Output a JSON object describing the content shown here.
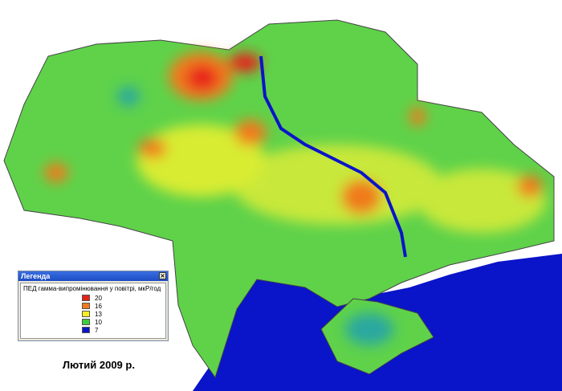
{
  "map": {
    "caption": "Лютий 2009 р.",
    "legend": {
      "title": "Легенда",
      "heading": "ПЕД гамма-випромінювання у повітрі, мкР/год",
      "items": [
        {
          "value": 20,
          "color": "#e8201a"
        },
        {
          "value": 16,
          "color": "#f07a1e"
        },
        {
          "value": 13,
          "color": "#f4f01e"
        },
        {
          "value": 10,
          "color": "#3ccc3c"
        },
        {
          "value": 7,
          "color": "#0a14c8"
        }
      ]
    }
  }
}
